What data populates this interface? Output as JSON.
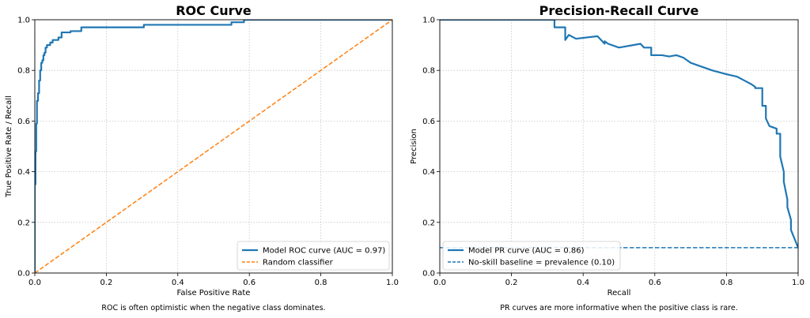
{
  "chart_data": [
    {
      "type": "line",
      "title": "ROC Curve",
      "xlabel": "False Positive Rate",
      "ylabel": "True Positive Rate / Recall",
      "xlim": [
        0,
        1
      ],
      "ylim": [
        0,
        1
      ],
      "xticks": [
        "0.0",
        "0.2",
        "0.4",
        "0.6",
        "0.8",
        "1.0"
      ],
      "yticks": [
        "0.0",
        "0.2",
        "0.4",
        "0.6",
        "0.8",
        "1.0"
      ],
      "grid": true,
      "legend": "lower right",
      "caption": "ROC is often optimistic when the negative class dominates.",
      "series": [
        {
          "name": "Model ROC curve (AUC = 0.97)",
          "color": "#1f77b4",
          "style": "solid",
          "x": [
            0,
            0,
            0.002,
            0.002,
            0.004,
            0.004,
            0.006,
            0.006,
            0.009,
            0.009,
            0.012,
            0.012,
            0.015,
            0.015,
            0.018,
            0.018,
            0.021,
            0.021,
            0.024,
            0.024,
            0.027,
            0.027,
            0.03,
            0.03,
            0.034,
            0.034,
            0.038,
            0.038,
            0.043,
            0.043,
            0.05,
            0.05,
            0.058,
            0.058,
            0.066,
            0.066,
            0.075,
            0.075,
            0.1,
            0.1,
            0.13,
            0.13,
            0.305,
            0.305,
            0.55,
            0.55,
            0.585,
            0.585,
            1.0
          ],
          "y": [
            0,
            0.35,
            0.35,
            0.48,
            0.48,
            0.59,
            0.59,
            0.68,
            0.68,
            0.71,
            0.71,
            0.76,
            0.76,
            0.8,
            0.8,
            0.83,
            0.83,
            0.84,
            0.84,
            0.86,
            0.86,
            0.87,
            0.87,
            0.89,
            0.89,
            0.9,
            0.9,
            0.9,
            0.9,
            0.91,
            0.91,
            0.92,
            0.92,
            0.92,
            0.92,
            0.93,
            0.93,
            0.95,
            0.95,
            0.955,
            0.955,
            0.97,
            0.97,
            0.98,
            0.98,
            0.99,
            0.99,
            1.0,
            1.0
          ]
        },
        {
          "name": "Random classifier",
          "color": "#ff7f0e",
          "style": "dashed",
          "x": [
            0,
            1
          ],
          "y": [
            0,
            1
          ]
        }
      ]
    },
    {
      "type": "line",
      "title": "Precision-Recall Curve",
      "xlabel": "Recall",
      "ylabel": "Precision",
      "xlim": [
        0,
        1
      ],
      "ylim": [
        0,
        1
      ],
      "xticks": [
        "0.0",
        "0.2",
        "0.4",
        "0.6",
        "0.8",
        "1.0"
      ],
      "yticks": [
        "0.0",
        "0.2",
        "0.4",
        "0.6",
        "0.8",
        "1.0"
      ],
      "grid": true,
      "legend": "lower left",
      "caption": "PR curves are more informative when the positive class is rare.",
      "series": [
        {
          "name": "Model PR curve (AUC = 0.86)",
          "color": "#1f77b4",
          "style": "solid",
          "x": [
            0,
            0.32,
            0.32,
            0.35,
            0.35,
            0.36,
            0.38,
            0.44,
            0.45,
            0.46,
            0.46,
            0.47,
            0.5,
            0.56,
            0.57,
            0.59,
            0.59,
            0.62,
            0.64,
            0.66,
            0.68,
            0.69,
            0.7,
            0.72,
            0.76,
            0.8,
            0.83,
            0.85,
            0.87,
            0.88,
            0.88,
            0.9,
            0.9,
            0.91,
            0.91,
            0.92,
            0.94,
            0.94,
            0.95,
            0.95,
            0.96,
            0.96,
            0.97,
            0.97,
            0.98,
            0.98,
            1.0
          ],
          "y": [
            1.0,
            1.0,
            0.97,
            0.97,
            0.92,
            0.94,
            0.925,
            0.935,
            0.92,
            0.905,
            0.915,
            0.905,
            0.89,
            0.905,
            0.89,
            0.89,
            0.86,
            0.86,
            0.855,
            0.86,
            0.85,
            0.84,
            0.83,
            0.82,
            0.8,
            0.785,
            0.775,
            0.76,
            0.745,
            0.735,
            0.73,
            0.73,
            0.66,
            0.66,
            0.61,
            0.58,
            0.57,
            0.55,
            0.55,
            0.46,
            0.4,
            0.36,
            0.29,
            0.26,
            0.21,
            0.17,
            0.1
          ]
        },
        {
          "name": "No-skill baseline = prevalence (0.10)",
          "color": "#1f77b4",
          "style": "dashed",
          "x": [
            0,
            1
          ],
          "y": [
            0.1,
            0.1
          ]
        }
      ]
    }
  ]
}
